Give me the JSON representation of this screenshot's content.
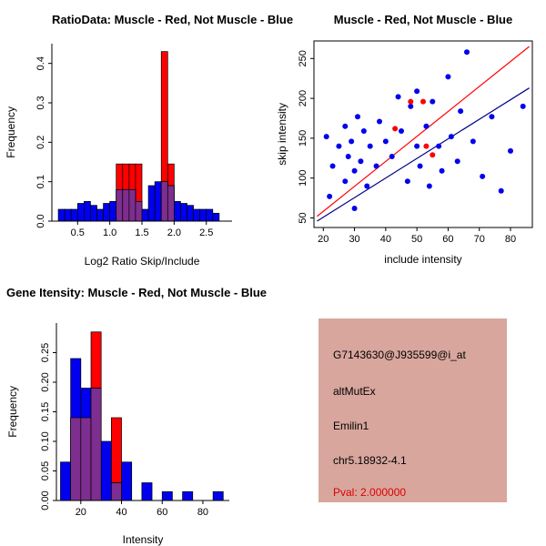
{
  "info": {
    "bg_color": "#D8A69D",
    "lines": [
      {
        "text": "G7143630@J935599@i_at",
        "color": "#000000"
      },
      {
        "text": "altMutEx",
        "color": "#000000"
      },
      {
        "text": "Emilin1",
        "color": "#000000"
      },
      {
        "text": "chr5.18932-4.1",
        "color": "#000000"
      },
      {
        "text": "Pval: 2.000000",
        "color": "#DE0000"
      }
    ]
  },
  "chart_data": [
    {
      "id": "ratio_hist",
      "type": "bar",
      "title": "RatioData: Muscle - Red, Not Muscle - Blue",
      "xlabel": "Log2 Ratio Skip/Include",
      "ylabel": "Frequency",
      "xlim": [
        0.1,
        2.9
      ],
      "ylim": [
        0,
        0.45
      ],
      "xticks": [
        0.5,
        1.0,
        1.5,
        2.0,
        2.5
      ],
      "xtick_labels": [
        "0.5",
        "1.0",
        "1.5",
        "2.0",
        "2.5"
      ],
      "yticks": [
        0,
        0.1,
        0.2,
        0.3,
        0.4
      ],
      "ytick_labels": [
        "0.0",
        "0.1",
        "0.2",
        "0.3",
        "0.4"
      ],
      "bin_width": 0.1,
      "overlap_color": "#7D2E8F",
      "grid": false,
      "series": [
        {
          "name": "Muscle",
          "color": "#FF0000",
          "bins": [
            {
              "x": 1.1,
              "h": 0.145
            },
            {
              "x": 1.2,
              "h": 0.145
            },
            {
              "x": 1.3,
              "h": 0.145
            },
            {
              "x": 1.4,
              "h": 0.145
            },
            {
              "x": 1.8,
              "h": 0.43
            },
            {
              "x": 1.9,
              "h": 0.145
            }
          ]
        },
        {
          "name": "Not Muscle",
          "color": "#0000EE",
          "bins": [
            {
              "x": 0.2,
              "h": 0.03
            },
            {
              "x": 0.3,
              "h": 0.03
            },
            {
              "x": 0.4,
              "h": 0.03
            },
            {
              "x": 0.5,
              "h": 0.045
            },
            {
              "x": 0.6,
              "h": 0.05
            },
            {
              "x": 0.7,
              "h": 0.04
            },
            {
              "x": 0.8,
              "h": 0.03
            },
            {
              "x": 0.9,
              "h": 0.045
            },
            {
              "x": 1.0,
              "h": 0.05
            },
            {
              "x": 1.1,
              "h": 0.08
            },
            {
              "x": 1.2,
              "h": 0.08
            },
            {
              "x": 1.3,
              "h": 0.08
            },
            {
              "x": 1.4,
              "h": 0.05
            },
            {
              "x": 1.5,
              "h": 0.03
            },
            {
              "x": 1.6,
              "h": 0.09
            },
            {
              "x": 1.7,
              "h": 0.1
            },
            {
              "x": 1.8,
              "h": 0.1
            },
            {
              "x": 1.9,
              "h": 0.09
            },
            {
              "x": 2.0,
              "h": 0.05
            },
            {
              "x": 2.1,
              "h": 0.045
            },
            {
              "x": 2.2,
              "h": 0.04
            },
            {
              "x": 2.3,
              "h": 0.03
            },
            {
              "x": 2.4,
              "h": 0.03
            },
            {
              "x": 2.5,
              "h": 0.03
            },
            {
              "x": 2.6,
              "h": 0.02
            }
          ]
        }
      ]
    },
    {
      "id": "scatter",
      "type": "scatter",
      "title": "Muscle - Red, Not Muscle - Blue",
      "xlabel": "include intensity",
      "ylabel": "skip intensity",
      "xlim": [
        17,
        87
      ],
      "ylim": [
        38,
        272
      ],
      "xticks": [
        20,
        30,
        40,
        50,
        60,
        70,
        80
      ],
      "xtick_labels": [
        "20",
        "30",
        "40",
        "50",
        "60",
        "70",
        "80"
      ],
      "yticks": [
        50,
        100,
        150,
        200,
        250
      ],
      "ytick_labels": [
        "50",
        "100",
        "150",
        "200",
        "250"
      ],
      "grid": false,
      "series": [
        {
          "name": "Muscle",
          "color": "#FF0000",
          "points": [
            [
              43,
              162
            ],
            [
              48,
              196
            ],
            [
              52,
              196
            ],
            [
              53,
              140
            ],
            [
              55,
              129
            ]
          ]
        },
        {
          "name": "Not Muscle",
          "color": "#0000EE",
          "points": [
            [
              21,
              152
            ],
            [
              22,
              77
            ],
            [
              23,
              115
            ],
            [
              25,
              140
            ],
            [
              27,
              96
            ],
            [
              27,
              165
            ],
            [
              28,
              127
            ],
            [
              29,
              146
            ],
            [
              30,
              109
            ],
            [
              30,
              62
            ],
            [
              31,
              177
            ],
            [
              32,
              121
            ],
            [
              33,
              159
            ],
            [
              34,
              90
            ],
            [
              35,
              140
            ],
            [
              37,
              115
            ],
            [
              38,
              171
            ],
            [
              40,
              146
            ],
            [
              42,
              127
            ],
            [
              44,
              202
            ],
            [
              45,
              159
            ],
            [
              47,
              96
            ],
            [
              48,
              190
            ],
            [
              50,
              140
            ],
            [
              50,
              209
            ],
            [
              51,
              115
            ],
            [
              53,
              165
            ],
            [
              54,
              90
            ],
            [
              55,
              196
            ],
            [
              57,
              140
            ],
            [
              58,
              109
            ],
            [
              60,
              227
            ],
            [
              61,
              152
            ],
            [
              63,
              121
            ],
            [
              64,
              184
            ],
            [
              66,
              258
            ],
            [
              68,
              146
            ],
            [
              71,
              102
            ],
            [
              74,
              177
            ],
            [
              77,
              84
            ],
            [
              80,
              134
            ],
            [
              84,
              190
            ]
          ]
        }
      ],
      "fit_lines": [
        {
          "name": "muscle-fit",
          "color": "#FF0000",
          "x": [
            18,
            86
          ],
          "y": [
            52,
            265
          ]
        },
        {
          "name": "not-muscle-fit",
          "color": "#00008B",
          "x": [
            18,
            86
          ],
          "y": [
            46,
            213
          ]
        }
      ]
    },
    {
      "id": "gene_hist",
      "type": "bar",
      "title": "Gene Itensity: Muscle - Red, Not Muscle - Blue",
      "xlabel": "Intensity",
      "ylabel": "Frequency",
      "xlim": [
        8,
        93
      ],
      "ylim": [
        0,
        0.3
      ],
      "xticks": [
        20,
        40,
        60,
        80
      ],
      "xtick_labels": [
        "20",
        "40",
        "60",
        "80"
      ],
      "yticks": [
        0,
        0.05,
        0.1,
        0.15,
        0.2,
        0.25
      ],
      "ytick_labels": [
        "0.00",
        "0.05",
        "0.10",
        "0.15",
        "0.20",
        "0.25"
      ],
      "bin_width": 5,
      "overlap_color": "#7D2E8F",
      "grid": false,
      "series": [
        {
          "name": "Muscle",
          "color": "#FF0000",
          "bins": [
            {
              "x": 15,
              "h": 0.14
            },
            {
              "x": 20,
              "h": 0.14
            },
            {
              "x": 25,
              "h": 0.285
            },
            {
              "x": 35,
              "h": 0.14
            }
          ]
        },
        {
          "name": "Not Muscle",
          "color": "#0000EE",
          "bins": [
            {
              "x": 10,
              "h": 0.065
            },
            {
              "x": 15,
              "h": 0.24
            },
            {
              "x": 20,
              "h": 0.19
            },
            {
              "x": 25,
              "h": 0.19
            },
            {
              "x": 30,
              "h": 0.1
            },
            {
              "x": 35,
              "h": 0.03
            },
            {
              "x": 40,
              "h": 0.065
            },
            {
              "x": 50,
              "h": 0.03
            },
            {
              "x": 60,
              "h": 0.015
            },
            {
              "x": 70,
              "h": 0.015
            },
            {
              "x": 85,
              "h": 0.015
            }
          ]
        }
      ]
    }
  ]
}
